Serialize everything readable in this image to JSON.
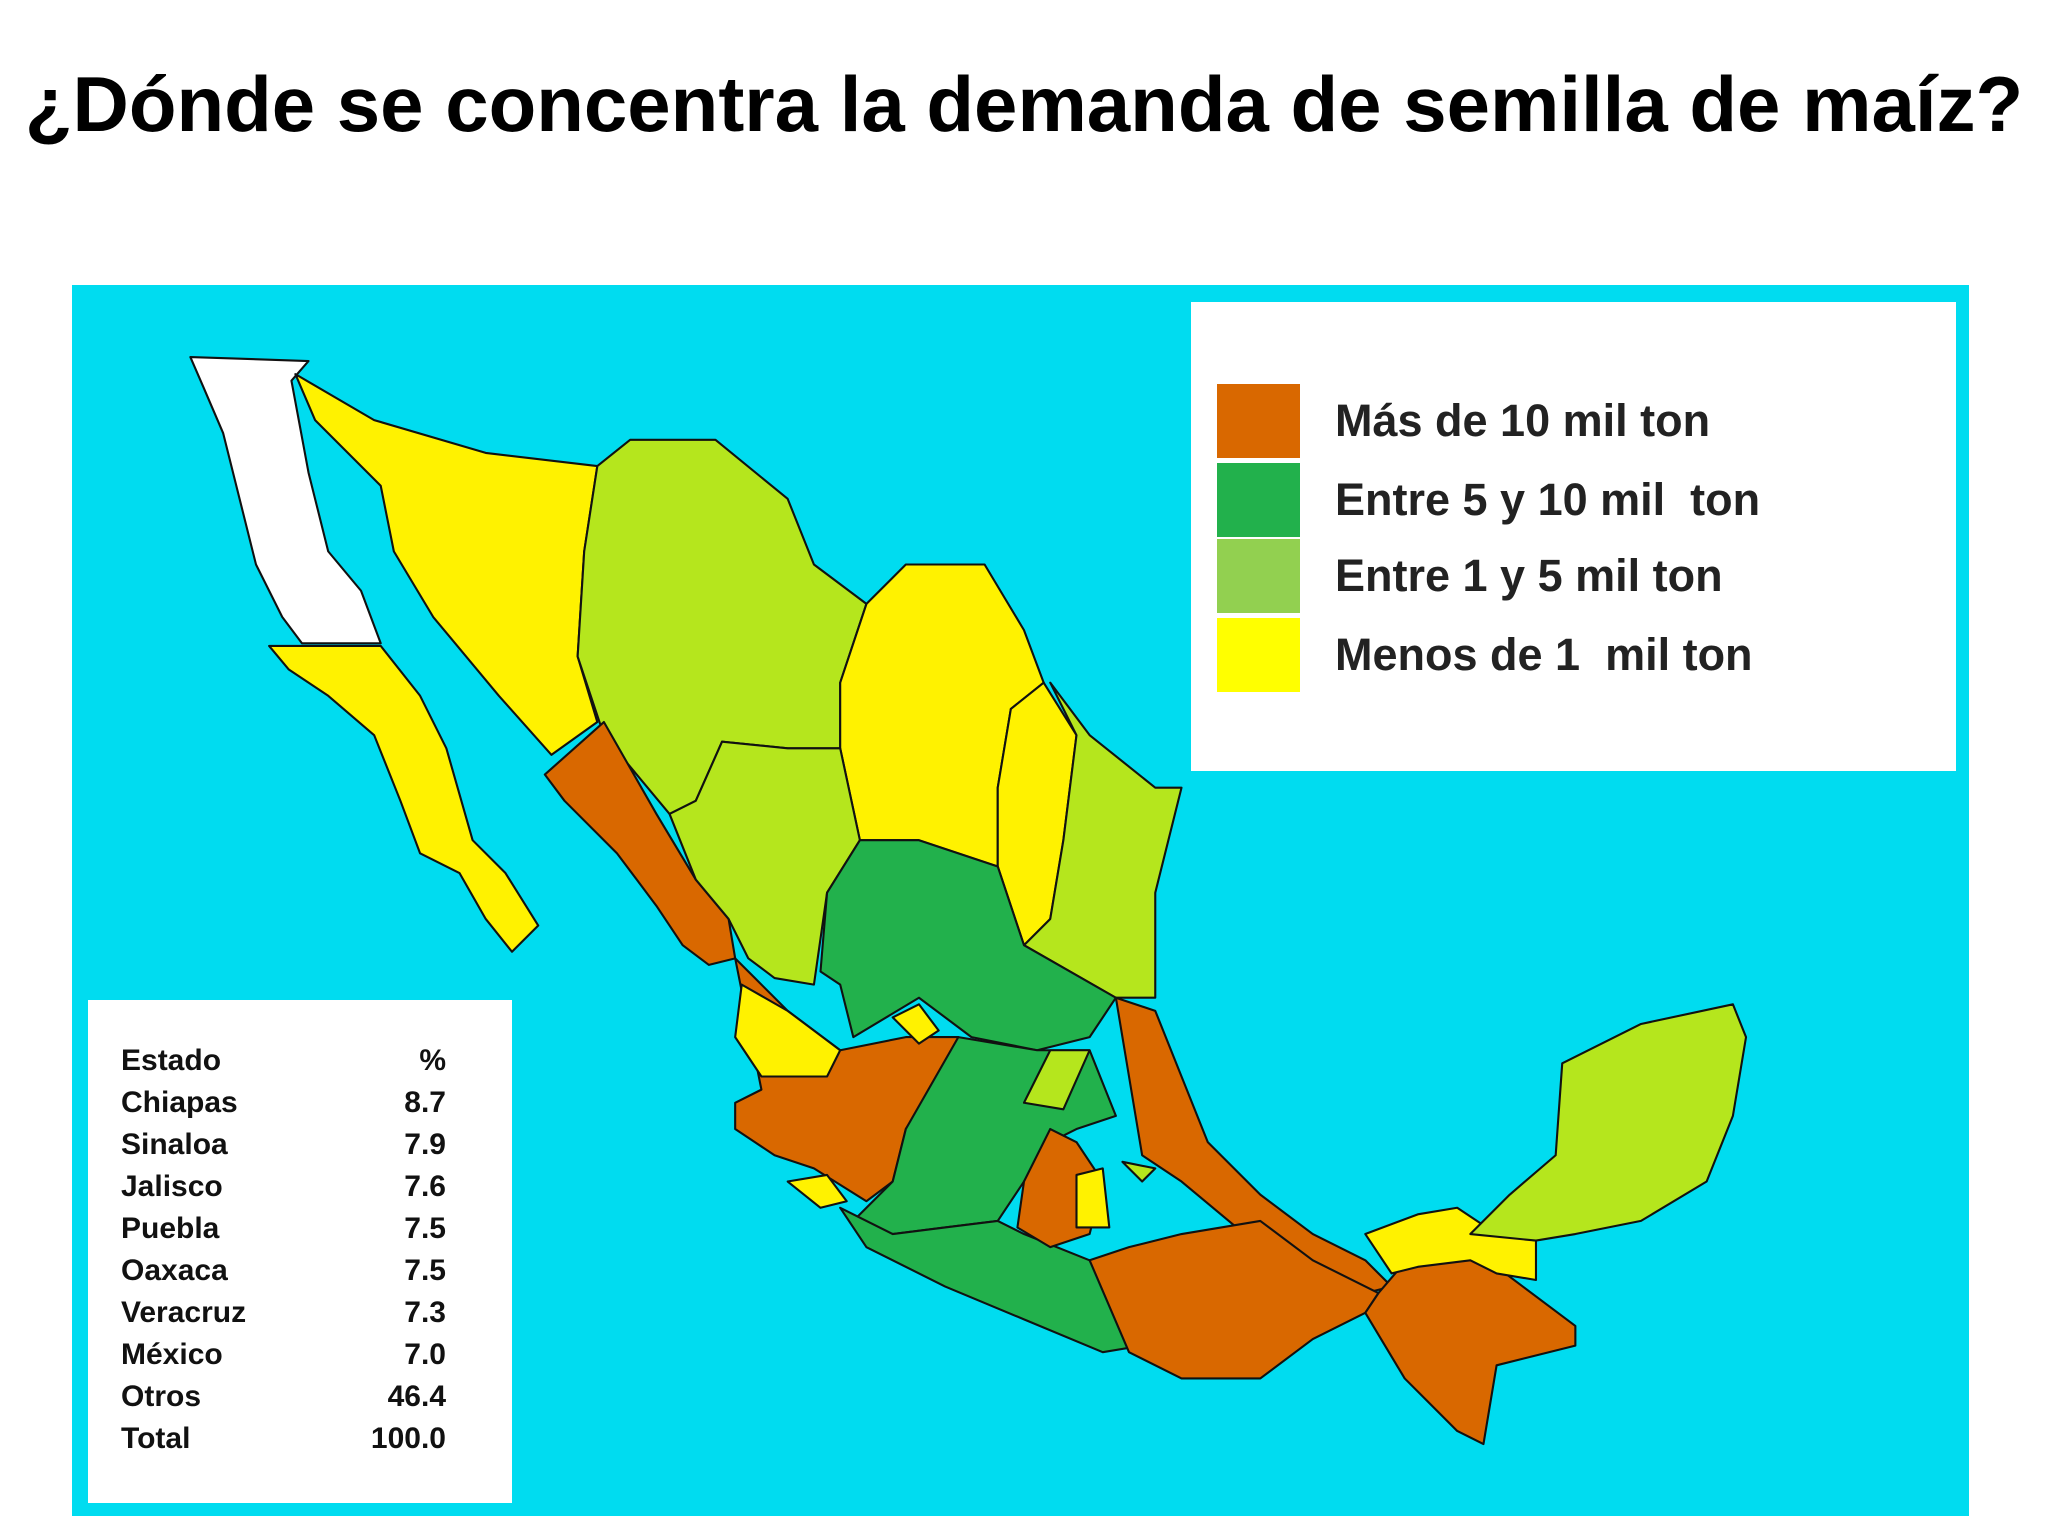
{
  "title": "¿Dónde se concentra la demanda de semilla de maíz?",
  "legend": [
    {
      "label": "Más de 10 mil ton",
      "color": "#d96800"
    },
    {
      "label": "Entre 5 y 10 mil  ton",
      "color": "#22b14c"
    },
    {
      "label": "Entre 1 y 5 mil ton",
      "color": "#92d050"
    },
    {
      "label": "Menos de 1  mil ton",
      "color": "#ffff00"
    }
  ],
  "table": {
    "header": [
      "Estado",
      "%"
    ],
    "rows": [
      [
        "Chiapas",
        "8.7"
      ],
      [
        "Sinaloa",
        "7.9"
      ],
      [
        "Jalisco",
        "7.6"
      ],
      [
        "Puebla",
        "7.5"
      ],
      [
        "Oaxaca",
        "7.5"
      ],
      [
        "Veracruz",
        "7.3"
      ],
      [
        "México",
        "7.0"
      ],
      [
        "Otros",
        "46.4"
      ],
      [
        "Total",
        "100.0"
      ]
    ]
  }
}
